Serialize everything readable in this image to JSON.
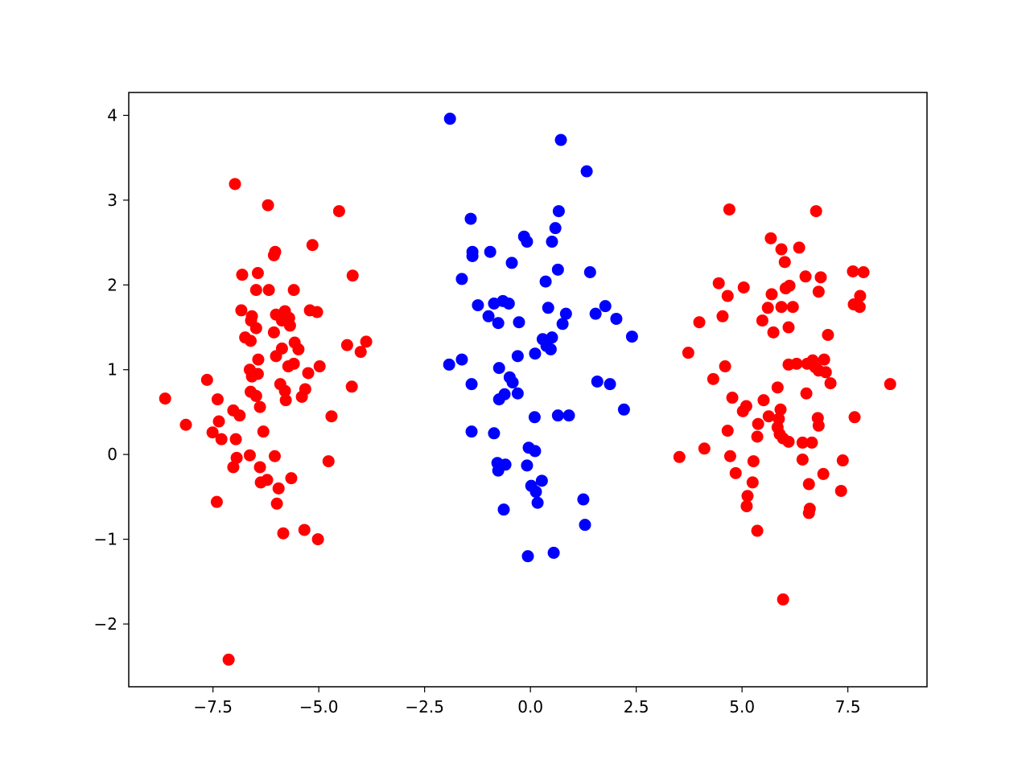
{
  "chart_data": {
    "type": "scatter",
    "xlim": [
      -9.49,
      9.37
    ],
    "ylim": [
      -2.74,
      4.27
    ],
    "xticks": [
      {
        "value": -7.5,
        "label": "−7.5"
      },
      {
        "value": -5,
        "label": "−5.0"
      },
      {
        "value": -2.5,
        "label": "−2.5"
      },
      {
        "value": 0,
        "label": "0.0"
      },
      {
        "value": 2.5,
        "label": "2.5"
      },
      {
        "value": 5,
        "label": "5.0"
      },
      {
        "value": 7.5,
        "label": "7.5"
      }
    ],
    "yticks": [
      {
        "value": -2,
        "label": "−2"
      },
      {
        "value": -1,
        "label": "−1"
      },
      0,
      1,
      2,
      3,
      4
    ],
    "grid": false,
    "series": [
      {
        "color": "#0000ff",
        "x": [
          -1.9,
          0.72,
          1.33,
          -1.41,
          0.67,
          0.59,
          -1.37,
          -1.37,
          -0.95,
          -0.15,
          -0.08,
          0.51,
          -0.44,
          0.65,
          1.41,
          -1.62,
          0.36,
          -1.24,
          -0.86,
          -0.65,
          -0.51,
          0.42,
          -0.99,
          -0.76,
          -0.27,
          0.84,
          0.76,
          1.77,
          1.54,
          2.03,
          2.4,
          0.51,
          0.29,
          0.38,
          0.48,
          0.11,
          -0.3,
          -1.62,
          -1.92,
          -0.74,
          -0.49,
          -0.42,
          -1.39,
          1.58,
          1.88,
          -0.61,
          -0.3,
          -0.74,
          0.65,
          0.91,
          0.1,
          2.21,
          -1.39,
          -0.86,
          -0.04,
          0.11,
          -0.78,
          -0.59,
          -0.76,
          -0.08,
          0.27,
          0.02,
          0.13,
          0.17,
          1.25,
          -0.63,
          1.29,
          0.55,
          -0.06
        ],
        "y": [
          3.96,
          3.71,
          3.34,
          2.78,
          2.87,
          2.67,
          2.39,
          2.34,
          2.39,
          2.57,
          2.51,
          2.51,
          2.26,
          2.18,
          2.15,
          2.07,
          2.04,
          1.76,
          1.78,
          1.81,
          1.78,
          1.73,
          1.63,
          1.55,
          1.56,
          1.66,
          1.54,
          1.75,
          1.66,
          1.6,
          1.39,
          1.38,
          1.36,
          1.28,
          1.24,
          1.19,
          1.16,
          1.12,
          1.06,
          1.02,
          0.91,
          0.85,
          0.83,
          0.86,
          0.83,
          0.71,
          0.72,
          0.65,
          0.46,
          0.46,
          0.44,
          0.53,
          0.27,
          0.25,
          0.08,
          0.04,
          -0.1,
          -0.12,
          -0.19,
          -0.13,
          -0.31,
          -0.37,
          -0.44,
          -0.57,
          -0.53,
          -0.65,
          -0.83,
          -1.16,
          -1.2
        ]
      },
      {
        "color": "#ff0000",
        "x": [
          -6.98,
          -6.2,
          -4.52,
          -5.15,
          -6.03,
          -6.06,
          -4.2,
          -6.81,
          -6.44,
          -6.48,
          -6.18,
          -5.59,
          -6.83,
          -6.58,
          -6.6,
          -6.01,
          -5.8,
          -5.21,
          -5.04,
          -5.7,
          -5.87,
          -5.68,
          -6.48,
          -6.06,
          -6.74,
          -6.61,
          -3.88,
          -4.33,
          -5.57,
          -5.48,
          -5.87,
          -4.01,
          -6.01,
          -6.43,
          -5.59,
          -5.72,
          -4.98,
          -5.25,
          -6.63,
          -6.44,
          -6.58,
          -7.64,
          -5.91,
          -5.8,
          -4.22,
          -5.32,
          -6.61,
          -6.48,
          -5.4,
          -8.63,
          -7.39,
          -5.78,
          -6.39,
          -7.02,
          -6.87,
          -4.7,
          -7.36,
          -8.14,
          -6.31,
          -7.51,
          -7.3,
          -6.96,
          -6.94,
          -6.63,
          -6.04,
          -4.77,
          -7.02,
          -6.39,
          -6.22,
          -5.65,
          -6.37,
          -5.95,
          -7.41,
          -5.99,
          -5.84,
          -5.34,
          -5.02,
          -7.13,
          4.7,
          6.75,
          5.68,
          6.35,
          5.93,
          6.01,
          7.62,
          7.87,
          6.5,
          6.86,
          4.45,
          5.04,
          6.12,
          6.03,
          6.81,
          4.66,
          5.7,
          7.79,
          7.64,
          7.78,
          5.93,
          6.2,
          5.61,
          4.54,
          5.48,
          3.99,
          6.1,
          5.74,
          7.03,
          3.73,
          6.1,
          6.29,
          6.54,
          6.67,
          6.94,
          6.73,
          6.81,
          6.98,
          4.6,
          7.09,
          8.5,
          4.32,
          5.84,
          6.52,
          4.77,
          5.51,
          5.1,
          5.02,
          5.91,
          5.63,
          5.87,
          7.66,
          6.79,
          5.38,
          6.81,
          5.84,
          4.66,
          5.89,
          5.36,
          5.97,
          6.1,
          6.43,
          6.65,
          4.11,
          3.52,
          4.72,
          6.43,
          7.38,
          5.27,
          6.92,
          4.85,
          6.58,
          5.25,
          7.34,
          5.13,
          5.11,
          6.6,
          6.58,
          5.36,
          5.97
        ],
        "y": [
          3.19,
          2.94,
          2.87,
          2.47,
          2.39,
          2.35,
          2.11,
          2.12,
          2.14,
          1.94,
          1.94,
          1.94,
          1.7,
          1.63,
          1.58,
          1.65,
          1.69,
          1.7,
          1.68,
          1.61,
          1.58,
          1.52,
          1.49,
          1.44,
          1.38,
          1.34,
          1.33,
          1.29,
          1.32,
          1.24,
          1.25,
          1.21,
          1.16,
          1.12,
          1.07,
          1.04,
          1.04,
          0.96,
          1.0,
          0.95,
          0.92,
          0.88,
          0.83,
          0.75,
          0.8,
          0.77,
          0.74,
          0.69,
          0.68,
          0.66,
          0.65,
          0.64,
          0.56,
          0.52,
          0.46,
          0.45,
          0.39,
          0.35,
          0.27,
          0.26,
          0.18,
          0.18,
          -0.04,
          -0.01,
          -0.02,
          -0.08,
          -0.15,
          -0.15,
          -0.3,
          -0.28,
          -0.33,
          -0.4,
          -0.56,
          -0.58,
          -0.93,
          -0.89,
          -1.0,
          -2.42,
          2.89,
          2.87,
          2.55,
          2.44,
          2.42,
          2.27,
          2.16,
          2.15,
          2.1,
          2.09,
          2.02,
          1.97,
          1.99,
          1.96,
          1.92,
          1.87,
          1.89,
          1.87,
          1.77,
          1.74,
          1.74,
          1.74,
          1.73,
          1.63,
          1.58,
          1.56,
          1.5,
          1.44,
          1.41,
          1.2,
          1.06,
          1.07,
          1.07,
          1.11,
          1.12,
          1.03,
          0.99,
          0.97,
          1.04,
          0.84,
          0.83,
          0.89,
          0.79,
          0.72,
          0.67,
          0.64,
          0.57,
          0.51,
          0.53,
          0.45,
          0.42,
          0.44,
          0.43,
          0.36,
          0.34,
          0.32,
          0.28,
          0.24,
          0.21,
          0.19,
          0.15,
          0.14,
          0.14,
          0.07,
          -0.03,
          -0.02,
          -0.06,
          -0.07,
          -0.08,
          -0.23,
          -0.22,
          -0.35,
          -0.33,
          -0.43,
          -0.49,
          -0.61,
          -0.64,
          -0.69,
          -0.9,
          -1.71
        ]
      }
    ]
  }
}
